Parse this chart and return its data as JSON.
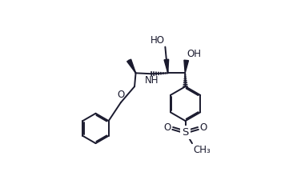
{
  "bg_color": "#ffffff",
  "bond_color": "#1a1a2e",
  "text_color": "#1a1a2e",
  "line_width": 1.4,
  "fig_width": 3.66,
  "fig_height": 2.2,
  "dpi": 100,
  "xlim": [
    -0.08,
    0.88
  ],
  "ylim": [
    -0.12,
    1.05
  ]
}
